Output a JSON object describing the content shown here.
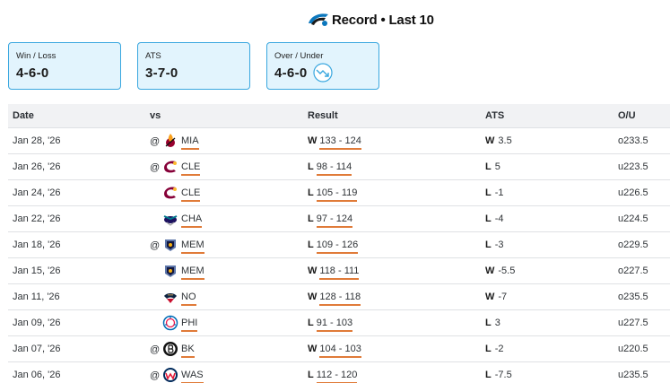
{
  "header": {
    "title": "Record • Last 10"
  },
  "cards": [
    {
      "label": "Win / Loss",
      "value": "4-6-0"
    },
    {
      "label": "ATS",
      "value": "3-7-0"
    },
    {
      "label": "Over / Under",
      "value": "4-6-0"
    }
  ],
  "table": {
    "columns": [
      "Date",
      "vs",
      "Result",
      "ATS",
      "O/U"
    ],
    "rows": [
      {
        "date": "Jan 28, '26",
        "at": "@",
        "opp": "MIA",
        "logo": "heat-logo-icon",
        "res": "W",
        "score": "133 - 124",
        "ats": "W",
        "spread": "3.5",
        "ou": "o233.5"
      },
      {
        "date": "Jan 26, '26",
        "at": "@",
        "opp": "CLE",
        "logo": "cavaliers-logo-icon",
        "res": "L",
        "score": "98 - 114",
        "ats": "L",
        "spread": "5",
        "ou": "u223.5"
      },
      {
        "date": "Jan 24, '26",
        "at": "",
        "opp": "CLE",
        "logo": "cavaliers-logo-icon",
        "res": "L",
        "score": "105 - 119",
        "ats": "L",
        "spread": "-1",
        "ou": "u226.5"
      },
      {
        "date": "Jan 22, '26",
        "at": "",
        "opp": "CHA",
        "logo": "hornets-logo-icon",
        "res": "L",
        "score": "97 - 124",
        "ats": "L",
        "spread": "-4",
        "ou": "u224.5"
      },
      {
        "date": "Jan 18, '26",
        "at": "@",
        "opp": "MEM",
        "logo": "grizzlies-logo-icon",
        "res": "L",
        "score": "109 - 126",
        "ats": "L",
        "spread": "-3",
        "ou": "o229.5"
      },
      {
        "date": "Jan 15, '26",
        "at": "",
        "opp": "MEM",
        "logo": "grizzlies-logo-icon",
        "res": "W",
        "score": "118 - 111",
        "ats": "W",
        "spread": "-5.5",
        "ou": "o227.5"
      },
      {
        "date": "Jan 11, '26",
        "at": "",
        "opp": "NO",
        "logo": "pelicans-logo-icon",
        "res": "W",
        "score": "128 - 118",
        "ats": "W",
        "spread": "-7",
        "ou": "o235.5"
      },
      {
        "date": "Jan 09, '26",
        "at": "",
        "opp": "PHI",
        "logo": "sixers-logo-icon",
        "res": "L",
        "score": "91 - 103",
        "ats": "L",
        "spread": "3",
        "ou": "u227.5"
      },
      {
        "date": "Jan 07, '26",
        "at": "@",
        "opp": "BK",
        "logo": "nets-logo-icon",
        "res": "W",
        "score": "104 - 103",
        "ats": "L",
        "spread": "-2",
        "ou": "u220.5"
      },
      {
        "date": "Jan 06, '26",
        "at": "@",
        "opp": "WAS",
        "logo": "wizards-logo-icon",
        "res": "L",
        "score": "112 - 120",
        "ats": "L",
        "spread": "-7.5",
        "ou": "u235.5"
      }
    ]
  },
  "colors": {
    "card_bg": "#e2f4fd",
    "card_border": "#39a7df",
    "underline": "#e07b39",
    "header_bg": "#f1f2f4"
  }
}
